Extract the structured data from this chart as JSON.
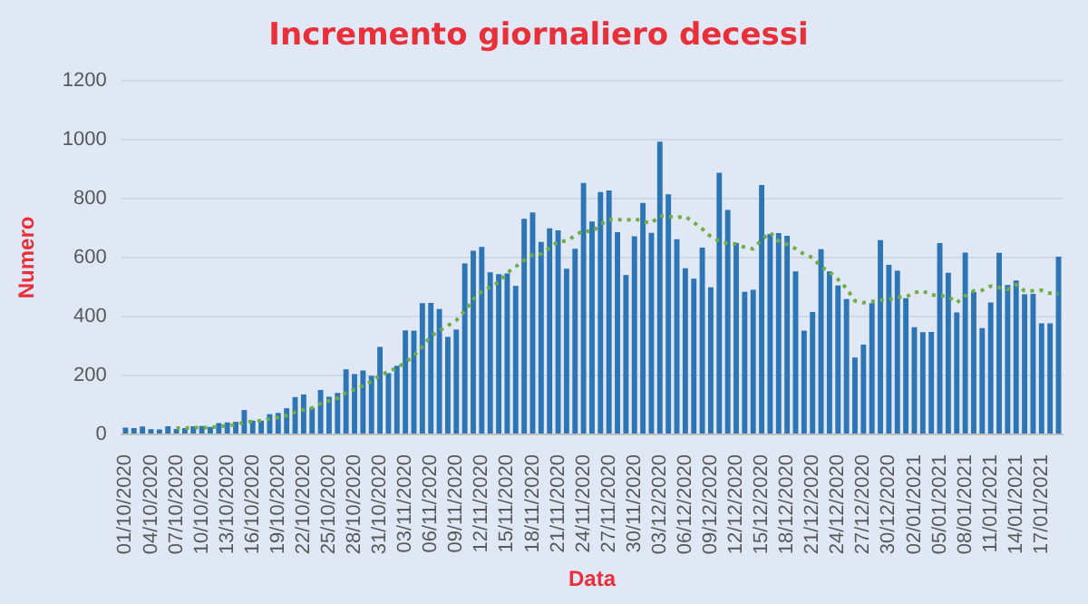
{
  "chart_data": {
    "type": "bar",
    "title": "Incremento giornaliero decessi",
    "xlabel": "Data",
    "ylabel": "Numero",
    "categories": [
      "01/10/2020",
      null,
      null,
      "04/10/2020",
      null,
      null,
      "07/10/2020",
      null,
      null,
      "10/10/2020",
      null,
      null,
      "13/10/2020",
      null,
      null,
      "16/10/2020",
      null,
      null,
      "19/10/2020",
      null,
      null,
      "22/10/2020",
      null,
      null,
      "25/10/2020",
      null,
      null,
      "28/10/2020",
      null,
      null,
      "31/10/2020",
      null,
      null,
      "03/11/2020",
      null,
      null,
      "06/11/2020",
      null,
      null,
      "09/11/2020",
      null,
      null,
      "12/11/2020",
      null,
      null,
      "15/11/2020",
      null,
      null,
      "18/11/2020",
      null,
      null,
      "21/11/2020",
      null,
      null,
      "24/11/2020",
      null,
      null,
      "27/11/2020",
      null,
      null,
      "30/11/2020",
      null,
      null,
      "03/12/2020",
      null,
      null,
      "06/12/2020",
      null,
      null,
      "09/12/2020",
      null,
      null,
      "12/12/2020",
      null,
      null,
      "15/12/2020",
      null,
      null,
      "18/12/2020",
      null,
      null,
      "21/12/2020",
      null,
      null,
      "24/12/2020",
      null,
      null,
      "27/12/2020",
      null,
      null,
      "30/12/2020",
      null,
      null,
      "02/01/2021",
      null,
      null,
      "05/01/2021",
      null,
      null,
      "08/01/2021",
      null,
      null,
      "11/01/2021",
      null,
      null,
      "14/01/2021",
      null,
      null,
      "17/01/2021",
      null,
      null
    ],
    "series": [
      {
        "color": "#2e75b6",
        "values": [
          23,
          22,
          27,
          18,
          17,
          28,
          19,
          22,
          28,
          29,
          26,
          39,
          41,
          43,
          83,
          47,
          47,
          69,
          73,
          89,
          127,
          136,
          91,
          151,
          128,
          141,
          221,
          205,
          217,
          199,
          297,
          208,
          233,
          353,
          352,
          445,
          446,
          425,
          331,
          356,
          580,
          623,
          636,
          550,
          544,
          546,
          504,
          731,
          753,
          653,
          699,
          692,
          562,
          630,
          853,
          722,
          822,
          827,
          686,
          541,
          672,
          785,
          684,
          993,
          814,
          662,
          564,
          528,
          634,
          499,
          887,
          761,
          649,
          484,
          491,
          846,
          680,
          683,
          674,
          553,
          352,
          415,
          628,
          553,
          505,
          459,
          261,
          305,
          445,
          659,
          575,
          555,
          462,
          364,
          347,
          348,
          649,
          548,
          414,
          617,
          483,
          361,
          448,
          616,
          507,
          522,
          475,
          477,
          377,
          377,
          603
        ]
      },
      {
        "type": "line",
        "color": "#70ad47",
        "line_style": "dotted",
        "marker": "none",
        "values": [
          null,
          null,
          null,
          null,
          null,
          null,
          22,
          22,
          23,
          23,
          24,
          27,
          29,
          33,
          41,
          44,
          47,
          53,
          58,
          64,
          76,
          84,
          90,
          105,
          114,
          123,
          142,
          153,
          165,
          180,
          201,
          213,
          226,
          245,
          266,
          298,
          333,
          352,
          369,
          387,
          419,
          458,
          485,
          500,
          517,
          548,
          569,
          591,
          609,
          612,
          633,
          654,
          656,
          674,
          692,
          687,
          711,
          730,
          729,
          726,
          732,
          722,
          717,
          741,
          739,
          736,
          739,
          719,
          697,
          671,
          655,
          648,
          646,
          635,
          629,
          660,
          685,
          656,
          644,
          630,
          611,
          600,
          569,
          551,
          526,
          495,
          453,
          447,
          451,
          455,
          458,
          466,
          466,
          481,
          487,
          473,
          471,
          468,
          447,
          470,
          487,
          489,
          503,
          498,
          492,
          508,
          487,
          487,
          489,
          479,
          477
        ]
      }
    ],
    "ylim": [
      0,
      1200
    ],
    "yticks": [
      0,
      200,
      400,
      600,
      800,
      1000,
      1200
    ],
    "grid": "y",
    "legend": false
  }
}
